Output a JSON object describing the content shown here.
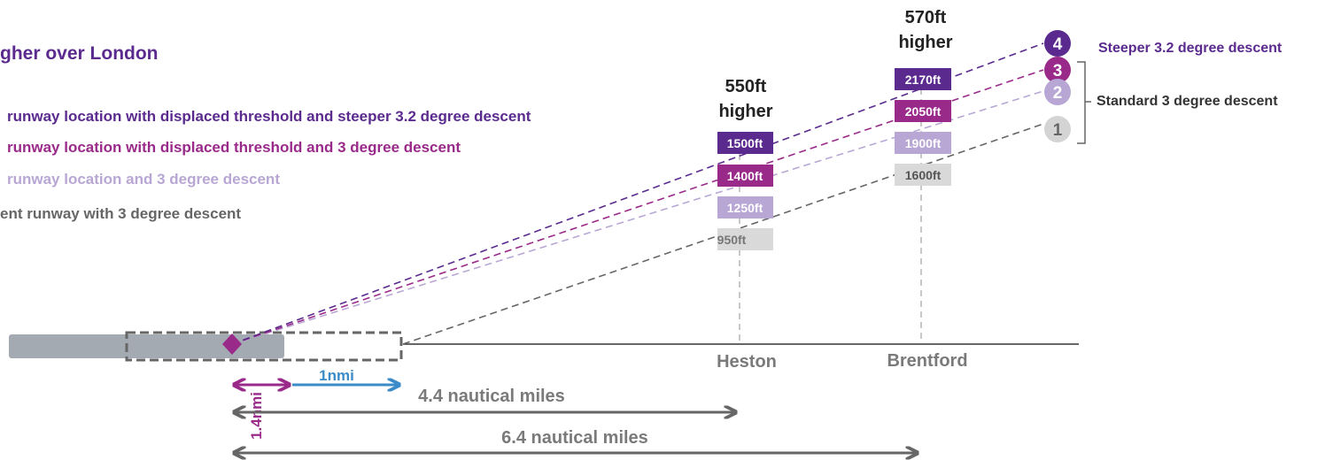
{
  "title": "gher over London",
  "legend": [
    {
      "text": "runway location with displaced threshold and steeper 3.2 degree descent",
      "color": "#5b2a8e"
    },
    {
      "text": "runway location with displaced  threshold and 3 degree descent",
      "color": "#9a2a8a"
    },
    {
      "text": "runway location and 3 degree descent",
      "color": "#b8a6d4"
    },
    {
      "text": "ent runway with 3 degree descent",
      "color": "#666666"
    }
  ],
  "colors": {
    "line4": "#5b2a8e",
    "line3": "#9a2a8a",
    "line2": "#b8a6d4",
    "line1": "#666666",
    "runway": "#a3aab1",
    "ground": "#333333",
    "blue": "#3b8bc9"
  },
  "heston": {
    "label": "Heston",
    "higher_value": "550ft",
    "higher_word": "higher",
    "altitudes": [
      "1500ft",
      "1400ft",
      "1250ft",
      "950ft"
    ]
  },
  "brentford": {
    "label": "Brentford",
    "higher_value": "570ft",
    "higher_word": "higher",
    "altitudes": [
      "2170ft",
      "2050ft",
      "1900ft",
      "1600ft"
    ]
  },
  "markers": [
    "4",
    "3",
    "2",
    "1"
  ],
  "right_labels": {
    "steeper": "Steeper 3.2 degree descent",
    "standard": "Standard 3 degree descent"
  },
  "distances": {
    "vertical": "1.4nmi",
    "one": "1nmi",
    "heston": "4.4 nautical miles",
    "brentford": "6.4 nautical miles"
  }
}
